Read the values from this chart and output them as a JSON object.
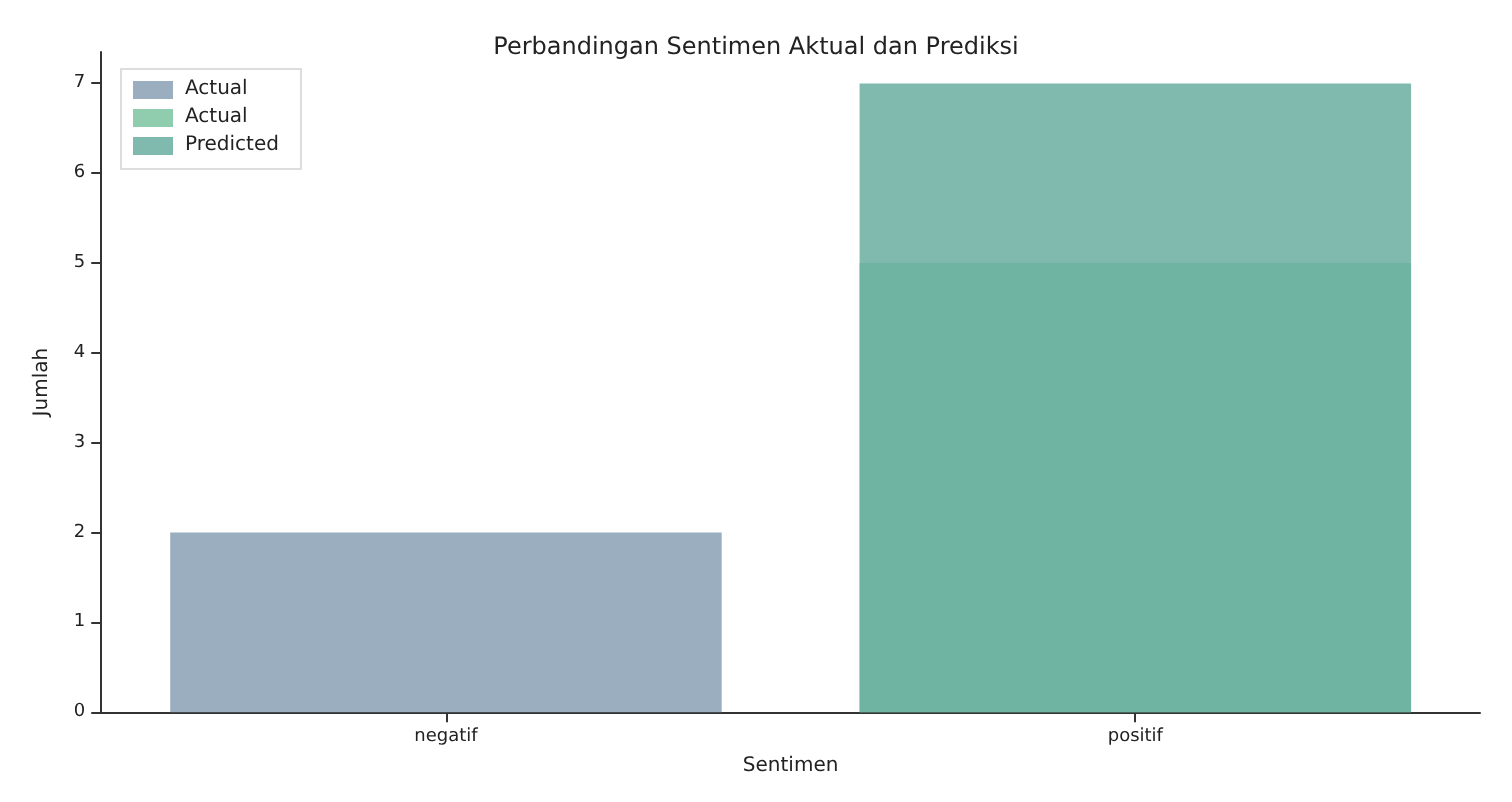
{
  "chart_data": {
    "type": "bar",
    "title": "Perbandingan Sentimen Aktual dan Prediksi",
    "xlabel": "Sentimen",
    "ylabel": "Jumlah",
    "categories": [
      "negatif",
      "positif"
    ],
    "series": [
      {
        "name": "Actual",
        "color": "#8aa0b4",
        "values": [
          2,
          null
        ]
      },
      {
        "name": "Actual",
        "color": "#7dc4a0",
        "values": [
          null,
          5
        ]
      },
      {
        "name": "Predicted",
        "color": "#6aaea0",
        "values": [
          null,
          7
        ]
      }
    ],
    "ylim": [
      0,
      7.35
    ],
    "yticks": [
      0,
      1,
      2,
      3,
      4,
      5,
      6,
      7
    ],
    "grid": false,
    "legend": "top left"
  }
}
